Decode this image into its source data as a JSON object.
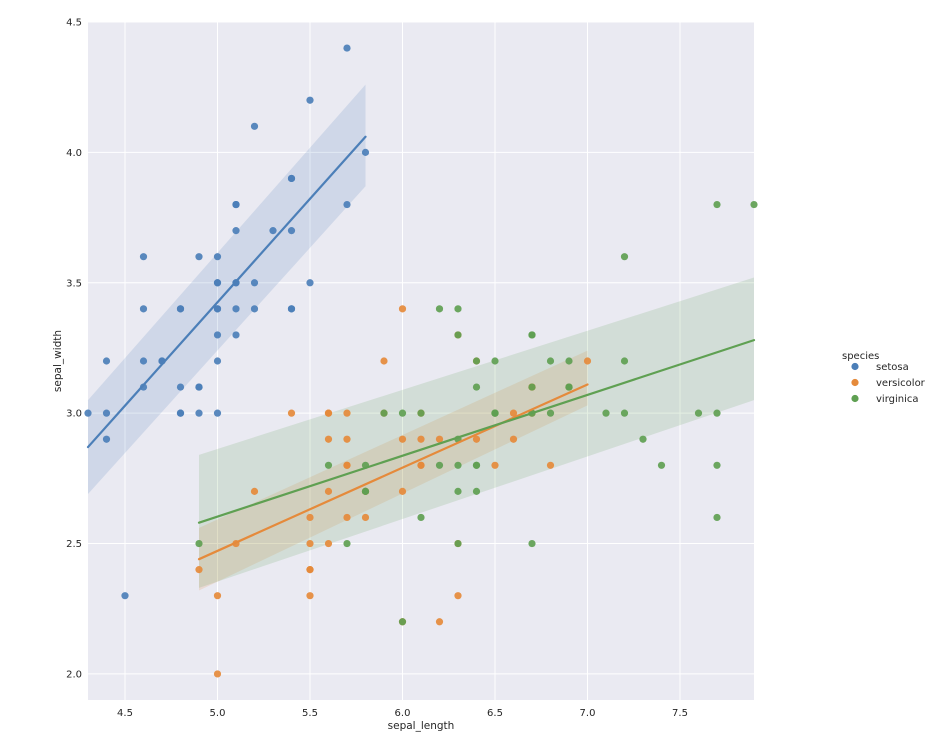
{
  "chart_data": {
    "type": "scatter",
    "xlabel": "sepal_length",
    "ylabel": "sepal_width",
    "xlim": [
      4.3,
      7.9
    ],
    "ylim": [
      1.9,
      4.5
    ],
    "xticks": [
      4.5,
      5.0,
      5.5,
      6.0,
      6.5,
      7.0,
      7.5
    ],
    "yticks": [
      2.0,
      2.5,
      3.0,
      3.5,
      4.0,
      4.5
    ],
    "xtick_labels": [
      "4.5",
      "5.0",
      "5.5",
      "6.0",
      "6.5",
      "7.0",
      "7.5"
    ],
    "ytick_labels": [
      "2.0",
      "2.5",
      "3.0",
      "3.5",
      "4.0",
      "4.5"
    ],
    "grid": true,
    "legend_title": "species",
    "legend_position": "right",
    "series": [
      {
        "name": "setosa",
        "color": "#4C7FB8",
        "points": [
          [
            5.1,
            3.5
          ],
          [
            4.9,
            3.0
          ],
          [
            4.7,
            3.2
          ],
          [
            4.6,
            3.1
          ],
          [
            5.0,
            3.6
          ],
          [
            5.4,
            3.9
          ],
          [
            4.6,
            3.4
          ],
          [
            5.0,
            3.4
          ],
          [
            4.4,
            2.9
          ],
          [
            4.9,
            3.1
          ],
          [
            5.4,
            3.7
          ],
          [
            4.8,
            3.4
          ],
          [
            4.8,
            3.0
          ],
          [
            4.3,
            3.0
          ],
          [
            5.8,
            4.0
          ],
          [
            5.7,
            4.4
          ],
          [
            5.4,
            3.9
          ],
          [
            5.1,
            3.5
          ],
          [
            5.7,
            3.8
          ],
          [
            5.1,
            3.8
          ],
          [
            5.4,
            3.4
          ],
          [
            5.1,
            3.7
          ],
          [
            4.6,
            3.6
          ],
          [
            5.1,
            3.3
          ],
          [
            4.8,
            3.4
          ],
          [
            5.0,
            3.0
          ],
          [
            5.0,
            3.4
          ],
          [
            5.2,
            3.5
          ],
          [
            5.2,
            3.4
          ],
          [
            4.7,
            3.2
          ],
          [
            4.8,
            3.1
          ],
          [
            5.4,
            3.4
          ],
          [
            5.2,
            4.1
          ],
          [
            5.5,
            4.2
          ],
          [
            4.9,
            3.1
          ],
          [
            5.0,
            3.2
          ],
          [
            5.5,
            3.5
          ],
          [
            4.9,
            3.6
          ],
          [
            4.4,
            3.0
          ],
          [
            5.1,
            3.4
          ],
          [
            5.0,
            3.5
          ],
          [
            4.5,
            2.3
          ],
          [
            4.4,
            3.2
          ],
          [
            5.0,
            3.5
          ],
          [
            5.1,
            3.8
          ],
          [
            4.8,
            3.0
          ],
          [
            5.1,
            3.8
          ],
          [
            4.6,
            3.2
          ],
          [
            5.3,
            3.7
          ],
          [
            5.0,
            3.3
          ]
        ],
        "fit": {
          "x": [
            4.3,
            5.8
          ],
          "y": [
            2.87,
            4.06
          ],
          "ci_low": [
            2.69,
            3.87
          ],
          "ci_high": [
            3.05,
            4.26
          ]
        }
      },
      {
        "name": "versicolor",
        "color": "#E58A3B",
        "points": [
          [
            7.0,
            3.2
          ],
          [
            6.4,
            3.2
          ],
          [
            6.9,
            3.1
          ],
          [
            5.5,
            2.3
          ],
          [
            6.5,
            2.8
          ],
          [
            5.7,
            2.8
          ],
          [
            6.3,
            3.3
          ],
          [
            4.9,
            2.4
          ],
          [
            6.6,
            2.9
          ],
          [
            5.2,
            2.7
          ],
          [
            5.0,
            2.0
          ],
          [
            5.9,
            3.0
          ],
          [
            6.0,
            2.2
          ],
          [
            6.1,
            2.9
          ],
          [
            5.6,
            2.9
          ],
          [
            6.7,
            3.1
          ],
          [
            5.6,
            3.0
          ],
          [
            5.8,
            2.7
          ],
          [
            6.2,
            2.2
          ],
          [
            5.6,
            2.5
          ],
          [
            5.9,
            3.2
          ],
          [
            6.1,
            2.8
          ],
          [
            6.3,
            2.5
          ],
          [
            6.1,
            2.8
          ],
          [
            6.4,
            2.9
          ],
          [
            6.6,
            3.0
          ],
          [
            6.8,
            2.8
          ],
          [
            6.7,
            3.0
          ],
          [
            6.0,
            2.9
          ],
          [
            5.7,
            2.6
          ],
          [
            5.5,
            2.4
          ],
          [
            5.5,
            2.4
          ],
          [
            5.8,
            2.7
          ],
          [
            6.0,
            2.7
          ],
          [
            5.4,
            3.0
          ],
          [
            6.0,
            3.4
          ],
          [
            6.7,
            3.1
          ],
          [
            6.3,
            2.3
          ],
          [
            5.6,
            3.0
          ],
          [
            5.5,
            2.5
          ],
          [
            5.5,
            2.6
          ],
          [
            6.1,
            3.0
          ],
          [
            5.8,
            2.6
          ],
          [
            5.0,
            2.3
          ],
          [
            5.6,
            2.7
          ],
          [
            5.7,
            3.0
          ],
          [
            5.7,
            2.9
          ],
          [
            6.2,
            2.9
          ],
          [
            5.1,
            2.5
          ],
          [
            5.7,
            2.8
          ]
        ],
        "fit": {
          "x": [
            4.9,
            7.0
          ],
          "y": [
            2.44,
            3.11
          ],
          "ci_low": [
            2.32,
            3.03
          ],
          "ci_high": [
            2.56,
            3.24
          ]
        }
      },
      {
        "name": "virginica",
        "color": "#5FA052",
        "points": [
          [
            6.3,
            3.3
          ],
          [
            5.8,
            2.7
          ],
          [
            7.1,
            3.0
          ],
          [
            6.3,
            2.9
          ],
          [
            6.5,
            3.0
          ],
          [
            7.6,
            3.0
          ],
          [
            4.9,
            2.5
          ],
          [
            7.3,
            2.9
          ],
          [
            6.7,
            2.5
          ],
          [
            7.2,
            3.6
          ],
          [
            6.5,
            3.2
          ],
          [
            6.4,
            2.7
          ],
          [
            6.8,
            3.0
          ],
          [
            5.7,
            2.5
          ],
          [
            5.8,
            2.8
          ],
          [
            6.4,
            3.2
          ],
          [
            6.5,
            3.0
          ],
          [
            7.7,
            3.8
          ],
          [
            7.7,
            2.6
          ],
          [
            6.0,
            2.2
          ],
          [
            6.9,
            3.2
          ],
          [
            5.6,
            2.8
          ],
          [
            7.7,
            2.8
          ],
          [
            6.3,
            2.7
          ],
          [
            6.7,
            3.3
          ],
          [
            7.2,
            3.2
          ],
          [
            6.2,
            2.8
          ],
          [
            6.1,
            3.0
          ],
          [
            6.4,
            2.8
          ],
          [
            7.2,
            3.0
          ],
          [
            7.4,
            2.8
          ],
          [
            7.9,
            3.8
          ],
          [
            6.4,
            2.8
          ],
          [
            6.3,
            2.8
          ],
          [
            6.1,
            2.6
          ],
          [
            7.7,
            3.0
          ],
          [
            6.3,
            3.4
          ],
          [
            6.4,
            3.1
          ],
          [
            6.0,
            3.0
          ],
          [
            6.9,
            3.1
          ],
          [
            6.7,
            3.1
          ],
          [
            6.9,
            3.1
          ],
          [
            5.8,
            2.7
          ],
          [
            6.8,
            3.2
          ],
          [
            6.7,
            3.3
          ],
          [
            6.7,
            3.0
          ],
          [
            6.3,
            2.5
          ],
          [
            6.5,
            3.0
          ],
          [
            6.2,
            3.4
          ],
          [
            5.9,
            3.0
          ]
        ],
        "fit": {
          "x": [
            4.9,
            7.9
          ],
          "y": [
            2.58,
            3.28
          ],
          "ci_low": [
            2.33,
            3.05
          ],
          "ci_high": [
            2.84,
            3.52
          ]
        }
      }
    ]
  }
}
